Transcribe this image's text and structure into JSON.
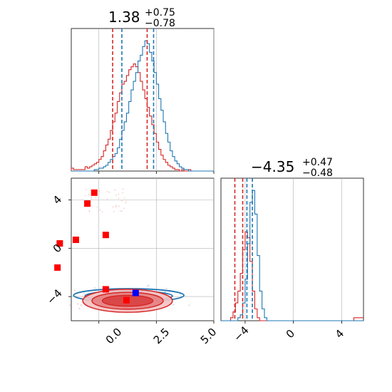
{
  "chart_data": {
    "type": "corner",
    "colors": {
      "red": "#d62728",
      "blue": "#1f77b4",
      "marker_red": "#ff0000",
      "marker_blue": "#0000ff",
      "grid": "#b0b0b0"
    },
    "params": [
      {
        "median": "1.38",
        "plus": "+0.75",
        "minus": "−0.78",
        "range": [
          -1.2,
          5.0
        ],
        "ticks": [
          0.0,
          2.5,
          5.0
        ],
        "tick_labels": [
          "0.0",
          "2.5",
          "5.0"
        ]
      },
      {
        "median": "−4.35",
        "plus": "+0.47",
        "minus": "−0.48",
        "range": [
          -6,
          5.8
        ],
        "ticks": [
          -4,
          0,
          4
        ],
        "tick_labels": [
          "−4",
          "0",
          "4"
        ]
      }
    ],
    "y_tick_labels": [
      "4",
      "0",
      "−4"
    ],
    "hist1": {
      "bin_start": -1.2,
      "bin_width": 0.1,
      "blue": [
        0,
        0,
        0,
        0,
        0,
        0,
        0,
        0,
        0,
        0,
        1,
        1,
        2,
        2,
        3,
        4,
        6,
        8,
        10,
        12,
        16,
        22,
        28,
        34,
        40,
        48,
        56,
        62,
        68,
        76,
        80,
        86,
        90,
        88,
        82,
        76,
        68,
        60,
        50,
        42,
        34,
        26,
        20,
        14,
        10,
        7,
        5,
        3,
        2,
        1,
        1,
        0,
        0,
        0,
        0,
        0,
        0,
        0,
        0,
        0,
        0,
        0
      ],
      "red": [
        2,
        1,
        1,
        1,
        1,
        1,
        3,
        2,
        3,
        4,
        5,
        6,
        8,
        10,
        14,
        18,
        22,
        28,
        34,
        40,
        48,
        54,
        60,
        62,
        66,
        70,
        72,
        74,
        72,
        68,
        62,
        56,
        50,
        44,
        38,
        32,
        26,
        20,
        15,
        11,
        8,
        6,
        4,
        3,
        2,
        1,
        1,
        0,
        1,
        0,
        0,
        1,
        0,
        0,
        0,
        0,
        0,
        0,
        0,
        0,
        0,
        0
      ],
      "quantiles_blue": [
        1.0,
        2.38
      ],
      "quantiles_red": [
        0.6,
        2.1
      ]
    },
    "hist2": {
      "bin_start": -6.0,
      "bin_width": 0.2,
      "blue": [
        0,
        0,
        0,
        0,
        0,
        0,
        0,
        1,
        2,
        6,
        14,
        26,
        40,
        44,
        36,
        22,
        10,
        4,
        1,
        0,
        0,
        0,
        0,
        0,
        0,
        0,
        0,
        0,
        0,
        0,
        0,
        0,
        0,
        0,
        0,
        0,
        0,
        0,
        0,
        0,
        0,
        0,
        0,
        0,
        0,
        0,
        0,
        0,
        0,
        0,
        0,
        0,
        0,
        0,
        0,
        0,
        0,
        0,
        0
      ],
      "red": [
        0,
        0,
        0,
        0,
        1,
        3,
        6,
        10,
        16,
        24,
        30,
        28,
        20,
        10,
        4,
        1,
        0,
        0,
        0,
        0,
        0,
        0,
        0,
        0,
        0,
        0,
        0,
        0,
        0,
        0,
        0,
        0,
        0,
        0,
        0,
        0,
        0,
        0,
        0,
        0,
        0,
        0,
        0,
        0,
        0,
        0,
        0,
        0,
        0,
        0,
        0,
        0,
        0,
        0,
        0,
        1,
        1,
        1,
        1
      ],
      "quantiles_blue": [
        -3.85,
        -3.4
      ],
      "quantiles_red": [
        -4.85,
        -4.2
      ]
    },
    "markers_red": [
      [
        -0.2,
        4.6
      ],
      [
        -0.5,
        3.7
      ],
      [
        -1.0,
        0.7
      ],
      [
        0.3,
        1.1
      ],
      [
        -1.7,
        0.4
      ],
      [
        -1.8,
        -1.6
      ],
      [
        0.3,
        -3.4
      ],
      [
        1.2,
        -4.3
      ]
    ],
    "markers_blue": [
      [
        1.6,
        -3.7
      ]
    ]
  }
}
